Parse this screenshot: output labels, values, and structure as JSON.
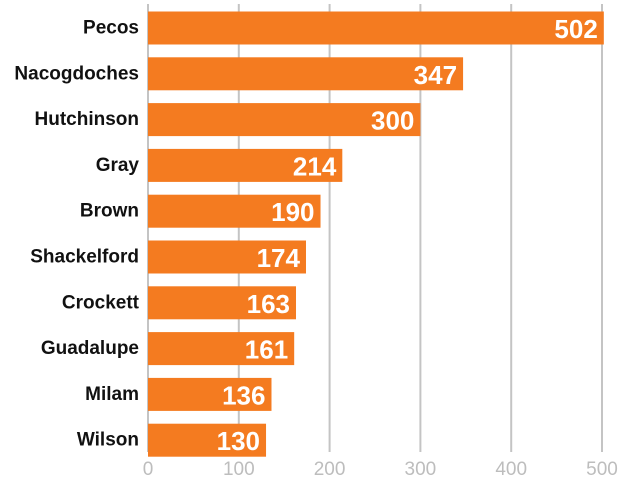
{
  "chart_data": {
    "type": "bar",
    "orientation": "horizontal",
    "categories": [
      "Pecos",
      "Nacogdoches",
      "Hutchinson",
      "Gray",
      "Brown",
      "Shackelford",
      "Crockett",
      "Guadalupe",
      "Milam",
      "Wilson"
    ],
    "values": [
      502,
      347,
      300,
      214,
      190,
      174,
      163,
      161,
      136,
      130
    ],
    "xlim": [
      0,
      500
    ],
    "xticks": [
      0,
      100,
      200,
      300,
      400,
      500
    ],
    "grid": true,
    "legend": "none",
    "bar_color": "#f47b20",
    "title": "",
    "xlabel": "",
    "ylabel": ""
  }
}
